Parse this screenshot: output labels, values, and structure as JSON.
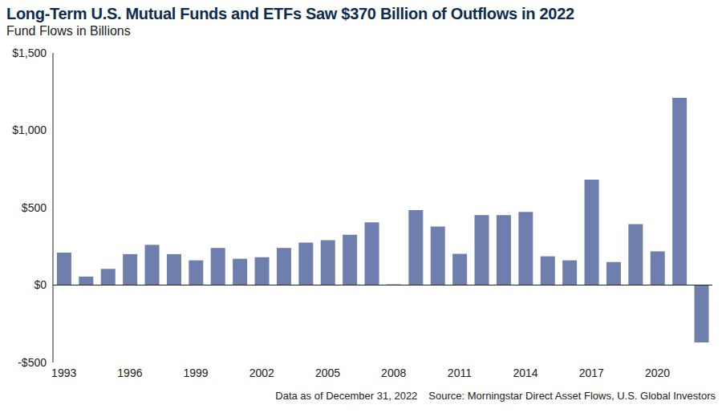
{
  "chart_data": {
    "type": "bar",
    "title": "Long-Term U.S. Mutual Funds and ETFs Saw $370 Billion of Outflows in 2022",
    "subtitle": "Fund Flows in Billions",
    "annotations": [
      "Data as of December 31, 2022",
      "Source: Morningstar Direct Asset Flows, U.S. Global Investors"
    ],
    "categories": [
      "1993",
      null,
      null,
      "1996",
      null,
      null,
      "1999",
      null,
      null,
      "2002",
      null,
      null,
      "2005",
      null,
      null,
      "2008",
      null,
      null,
      "2011",
      null,
      null,
      "2014",
      null,
      null,
      "2017",
      null,
      null,
      "2020",
      null,
      null
    ],
    "values": [
      210,
      55,
      105,
      200,
      260,
      200,
      160,
      240,
      170,
      180,
      240,
      275,
      290,
      325,
      405,
      5,
      485,
      378,
      202,
      452,
      452,
      473,
      186,
      160,
      681,
      149,
      394,
      218,
      1210,
      -370
    ],
    "color": "#6e7fae",
    "ylim": [
      -500,
      1500
    ],
    "yticks": [
      {
        "value": -500,
        "label": "-$500"
      },
      {
        "value": 0,
        "label": "$0"
      },
      {
        "value": 500,
        "label": "$500"
      },
      {
        "value": 1000,
        "label": "$1,000"
      },
      {
        "value": 1500,
        "label": "$1,500"
      }
    ],
    "grid": false
  }
}
